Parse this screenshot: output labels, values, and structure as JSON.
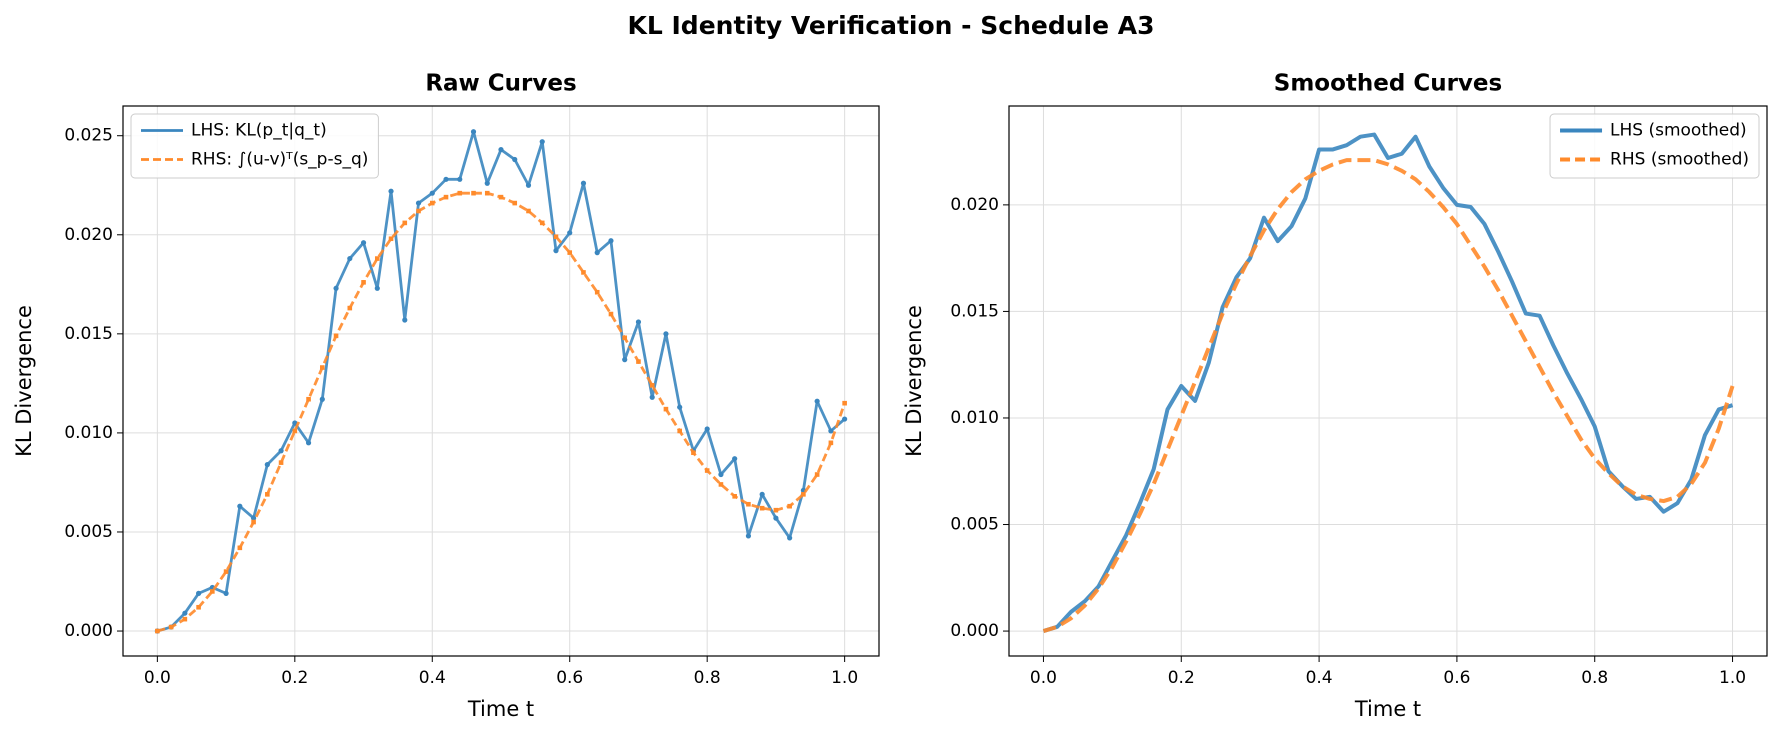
{
  "title": "KL Identity Verification - Schedule A3",
  "chart_data": [
    {
      "type": "line",
      "title": "Raw Curves",
      "xlabel": "Time t",
      "ylabel": "KL Divergence",
      "x": [
        0,
        0.02,
        0.04,
        0.06,
        0.08,
        0.1,
        0.12,
        0.14,
        0.16,
        0.18,
        0.2,
        0.22,
        0.24,
        0.26,
        0.28,
        0.3,
        0.32,
        0.34,
        0.36,
        0.38,
        0.4,
        0.42,
        0.44,
        0.46,
        0.48,
        0.5,
        0.52,
        0.54,
        0.56,
        0.58,
        0.6,
        0.62,
        0.64,
        0.66,
        0.68,
        0.7,
        0.72,
        0.74,
        0.76,
        0.78,
        0.8,
        0.82,
        0.84,
        0.86,
        0.88,
        0.9,
        0.92,
        0.94,
        0.96,
        0.98,
        1.0
      ],
      "series": [
        {
          "name": "LHS: KL(p_t|q_t)",
          "color": "#3a86bf",
          "linestyle": "solid",
          "marker": "circle",
          "values": [
            0,
            0.0002,
            0.0009,
            0.0019,
            0.0022,
            0.0019,
            0.0063,
            0.0057,
            0.0084,
            0.0091,
            0.0105,
            0.0095,
            0.0117,
            0.0173,
            0.0188,
            0.0196,
            0.0173,
            0.0222,
            0.0157,
            0.0216,
            0.0221,
            0.0228,
            0.0228,
            0.0252,
            0.0226,
            0.0243,
            0.0238,
            0.0225,
            0.0247,
            0.0192,
            0.0201,
            0.0226,
            0.0191,
            0.0197,
            0.0137,
            0.0156,
            0.0118,
            0.015,
            0.0113,
            0.0091,
            0.0102,
            0.0079,
            0.0087,
            0.0048,
            0.0069,
            0.0057,
            0.0047,
            0.0071,
            0.0116,
            0.0101,
            0.0107
          ]
        },
        {
          "name": "RHS: ∫(u-v)ᵀ(s_p-s_q)",
          "color": "#ff8a2a",
          "linestyle": "dashed",
          "marker": "square",
          "values": [
            0,
            0.0002,
            0.0006,
            0.0012,
            0.002,
            0.003,
            0.0042,
            0.0055,
            0.0069,
            0.0085,
            0.0101,
            0.0117,
            0.0133,
            0.0149,
            0.0163,
            0.0176,
            0.0188,
            0.0198,
            0.0206,
            0.0212,
            0.0216,
            0.0219,
            0.0221,
            0.0221,
            0.0221,
            0.0219,
            0.0216,
            0.0212,
            0.0206,
            0.0199,
            0.0191,
            0.0181,
            0.0171,
            0.016,
            0.0148,
            0.0136,
            0.0124,
            0.0112,
            0.0101,
            0.009,
            0.0081,
            0.0074,
            0.0068,
            0.0064,
            0.0062,
            0.0061,
            0.0063,
            0.0069,
            0.0079,
            0.0095,
            0.0115
          ]
        }
      ],
      "xlim": [
        -0.05,
        1.05
      ],
      "ylim": [
        -0.00126,
        0.0265
      ],
      "xticks": [
        {
          "value": 0,
          "label": "0.0"
        },
        {
          "value": 0.2,
          "label": "0.2"
        },
        {
          "value": 0.4,
          "label": "0.4"
        },
        {
          "value": 0.6,
          "label": "0.6"
        },
        {
          "value": 0.8,
          "label": "0.8"
        },
        {
          "value": 1,
          "label": "1.0"
        }
      ],
      "yticks": [
        {
          "value": 0,
          "label": "0.000"
        },
        {
          "value": 0.005,
          "label": "0.005"
        },
        {
          "value": 0.01,
          "label": "0.010"
        },
        {
          "value": 0.015,
          "label": "0.015"
        },
        {
          "value": 0.02,
          "label": "0.020"
        },
        {
          "value": 0.025,
          "label": "0.025"
        }
      ],
      "grid": true,
      "legend": "upper-left"
    },
    {
      "type": "line",
      "title": "Smoothed Curves",
      "xlabel": "Time t",
      "ylabel": "KL Divergence",
      "x": [
        0,
        0.02,
        0.04,
        0.06,
        0.08,
        0.1,
        0.12,
        0.14,
        0.16,
        0.18,
        0.2,
        0.22,
        0.24,
        0.26,
        0.28,
        0.3,
        0.32,
        0.34,
        0.36,
        0.38,
        0.4,
        0.42,
        0.44,
        0.46,
        0.48,
        0.5,
        0.52,
        0.54,
        0.56,
        0.58,
        0.6,
        0.62,
        0.64,
        0.66,
        0.68,
        0.7,
        0.72,
        0.74,
        0.76,
        0.78,
        0.8,
        0.82,
        0.84,
        0.86,
        0.88,
        0.9,
        0.92,
        0.94,
        0.96,
        0.98,
        1.0
      ],
      "series": [
        {
          "name": "LHS (smoothed)",
          "color": "#3a86bf",
          "linestyle": "solid",
          "values": [
            0,
            0.0002,
            0.0009,
            0.0014,
            0.0021,
            0.0033,
            0.0045,
            0.006,
            0.0076,
            0.0104,
            0.0115,
            0.0108,
            0.0126,
            0.0152,
            0.0166,
            0.0175,
            0.0194,
            0.0183,
            0.019,
            0.0203,
            0.0226,
            0.0226,
            0.0228,
            0.0232,
            0.0233,
            0.0222,
            0.0224,
            0.0232,
            0.0218,
            0.0208,
            0.02,
            0.0199,
            0.0191,
            0.0178,
            0.0164,
            0.0149,
            0.0148,
            0.0134,
            0.0121,
            0.0109,
            0.0096,
            0.0075,
            0.0068,
            0.0062,
            0.0063,
            0.0056,
            0.006,
            0.0071,
            0.0092,
            0.0104,
            0.0106
          ]
        },
        {
          "name": "RHS (smoothed)",
          "color": "#ff8a2a",
          "linestyle": "dashed",
          "values": [
            0,
            0.0002,
            0.0006,
            0.0012,
            0.002,
            0.003,
            0.0042,
            0.0055,
            0.0069,
            0.0085,
            0.0101,
            0.0117,
            0.0133,
            0.0149,
            0.0163,
            0.0176,
            0.0188,
            0.0198,
            0.0206,
            0.0212,
            0.0216,
            0.0219,
            0.0221,
            0.0221,
            0.0221,
            0.0219,
            0.0216,
            0.0212,
            0.0206,
            0.0199,
            0.0191,
            0.0181,
            0.0171,
            0.016,
            0.0148,
            0.0136,
            0.0124,
            0.0112,
            0.0101,
            0.009,
            0.0081,
            0.0074,
            0.0068,
            0.0064,
            0.0062,
            0.0061,
            0.0063,
            0.0069,
            0.0079,
            0.0095,
            0.0115
          ]
        }
      ],
      "xlim": [
        -0.05,
        1.05
      ],
      "ylim": [
        -0.00117,
        0.02464
      ],
      "xticks": [
        {
          "value": 0,
          "label": "0.0"
        },
        {
          "value": 0.2,
          "label": "0.2"
        },
        {
          "value": 0.4,
          "label": "0.4"
        },
        {
          "value": 0.6,
          "label": "0.6"
        },
        {
          "value": 0.8,
          "label": "0.8"
        },
        {
          "value": 1,
          "label": "1.0"
        }
      ],
      "yticks": [
        {
          "value": 0,
          "label": "0.000"
        },
        {
          "value": 0.005,
          "label": "0.005"
        },
        {
          "value": 0.01,
          "label": "0.010"
        },
        {
          "value": 0.015,
          "label": "0.015"
        },
        {
          "value": 0.02,
          "label": "0.020"
        }
      ],
      "grid": true,
      "legend": "upper-right"
    }
  ]
}
